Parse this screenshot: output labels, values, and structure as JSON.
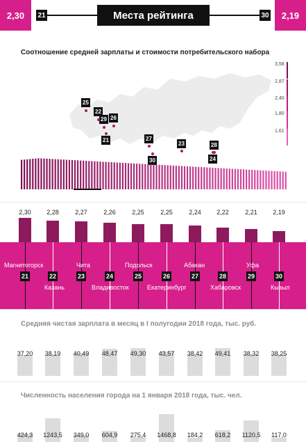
{
  "header": {
    "left_value": "2,30",
    "left_rank": "21",
    "title": "Места рейтинга",
    "right_rank": "30",
    "right_value": "2,19"
  },
  "ratio_section": {
    "title": "Соотношение средней зарплаты и стоимости потребительского набора",
    "scale": [
      "3,58",
      "2,87",
      "2,40",
      "1,80",
      "1,61"
    ],
    "map_badges": [
      "25",
      "22",
      "29",
      "26",
      "21",
      "27",
      "30",
      "23",
      "28",
      "24"
    ]
  },
  "chart_data": [
    {
      "type": "bar",
      "title": "",
      "categories": [
        "Магнитогорск",
        "Казань",
        "Чита",
        "Владивосток",
        "Подольск",
        "Екатеринбург",
        "Абакан",
        "Хабаровск",
        "Уфа",
        "Кызыл"
      ],
      "ranks": [
        "21",
        "22",
        "23",
        "24",
        "25",
        "26",
        "27",
        "28",
        "29",
        "30"
      ],
      "values": [
        2.3,
        2.28,
        2.27,
        2.26,
        2.25,
        2.25,
        2.24,
        2.22,
        2.21,
        2.19
      ],
      "value_labels": [
        "2,30",
        "2,28",
        "2,27",
        "2,26",
        "2,25",
        "2,25",
        "2,24",
        "2,22",
        "2,21",
        "2,19"
      ],
      "ylim": [
        0,
        2.4
      ]
    },
    {
      "type": "bar",
      "title": "Средняя чистая зарплата в месяц в I полугодии 2018 года, тыс. руб.",
      "categories": [
        "Магнитогорск",
        "Казань",
        "Чита",
        "Владивосток",
        "Подольск",
        "Екатеринбург",
        "Абакан",
        "Хабаровск",
        "Уфа",
        "Кызыл"
      ],
      "values": [
        37.2,
        38.19,
        40.49,
        48.47,
        49.3,
        43.57,
        38.42,
        49.41,
        38.32,
        38.25
      ],
      "value_labels": [
        "37,20",
        "38,19",
        "40,49",
        "48,47",
        "49,30",
        "43,57",
        "38,42",
        "49,41",
        "38,32",
        "38,25"
      ]
    },
    {
      "type": "bar",
      "title": "Численность населения города на 1 января 2018 года, тыс. чел.",
      "categories": [
        "Магнитогорск",
        "Казань",
        "Чита",
        "Владивосток",
        "Подольск",
        "Екатеринбург",
        "Абакан",
        "Хабаровск",
        "Уфа",
        "Кызыл"
      ],
      "values": [
        424.3,
        1243.5,
        349.0,
        604.9,
        275.4,
        1468.8,
        184.2,
        618.2,
        1120.5,
        117.0
      ],
      "value_labels": [
        "424,3",
        "1243,5",
        "349,0",
        "604,9",
        "275,4",
        "1468,8",
        "184,2",
        "618,2",
        "1120,5",
        "117,0"
      ]
    }
  ]
}
